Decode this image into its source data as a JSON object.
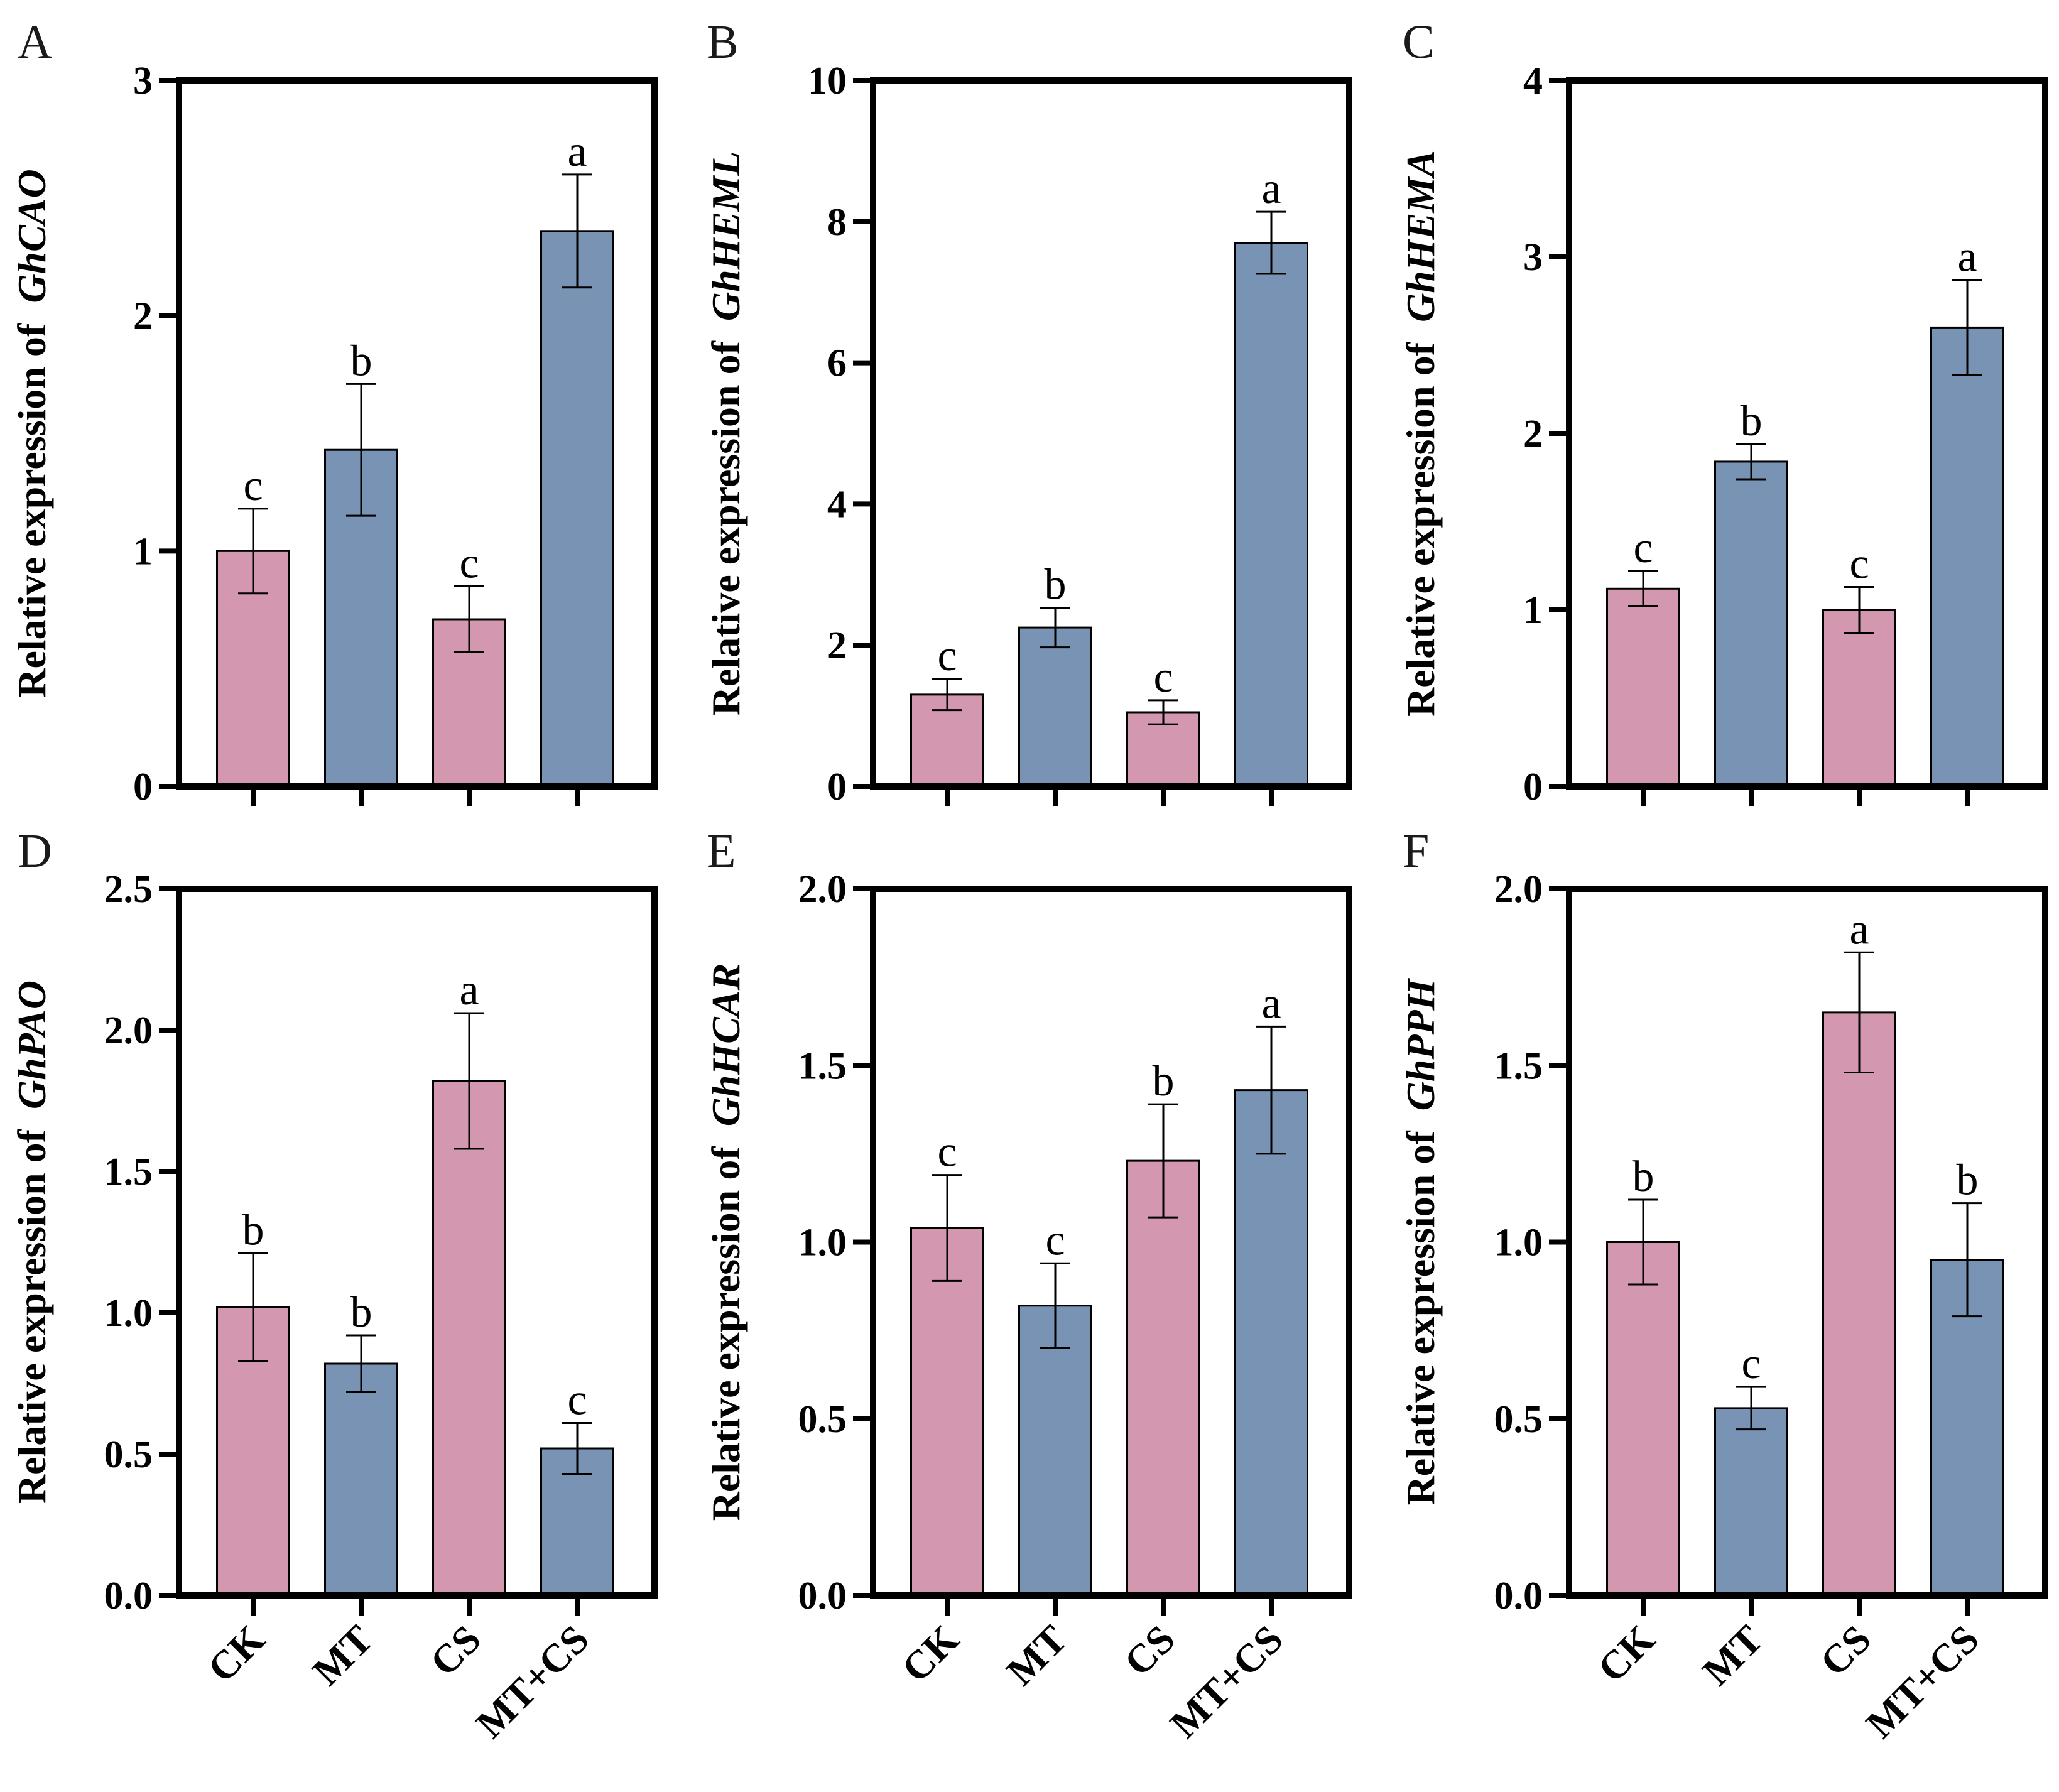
{
  "chart_data": [
    {
      "type": "bar",
      "panel": "A",
      "ylabel_prefix": "Relative expression of",
      "ylabel_gene": "GhCAO",
      "categories": [
        "CK",
        "MT",
        "CS",
        "MT+CS"
      ],
      "values": [
        1.0,
        1.43,
        0.71,
        2.36
      ],
      "errors": [
        0.18,
        0.28,
        0.14,
        0.24
      ],
      "significance": [
        "c",
        "b",
        "c",
        "a"
      ],
      "colors": [
        "#d398b0",
        "#7893b4",
        "#d398b0",
        "#7893b4"
      ],
      "ylim": [
        0,
        3
      ],
      "yticks": [
        0,
        1,
        2,
        3
      ],
      "ytick_labels": [
        "0",
        "1",
        "2",
        "3"
      ],
      "show_category_labels": false
    },
    {
      "type": "bar",
      "panel": "B",
      "ylabel_prefix": "Relative expression of",
      "ylabel_gene": "GhHEML",
      "categories": [
        "CK",
        "MT",
        "CS",
        "MT+CS"
      ],
      "values": [
        1.3,
        2.25,
        1.05,
        7.7
      ],
      "errors": [
        0.22,
        0.28,
        0.17,
        0.44
      ],
      "significance": [
        "c",
        "b",
        "c",
        "a"
      ],
      "colors": [
        "#d398b0",
        "#7893b4",
        "#d398b0",
        "#7893b4"
      ],
      "ylim": [
        0,
        10
      ],
      "yticks": [
        0,
        2,
        4,
        6,
        8,
        10
      ],
      "ytick_labels": [
        "0",
        "2",
        "4",
        "6",
        "8",
        "10"
      ],
      "show_category_labels": false
    },
    {
      "type": "bar",
      "panel": "C",
      "ylabel_prefix": "Relative expression of",
      "ylabel_gene": "GhHEMA",
      "categories": [
        "CK",
        "MT",
        "CS",
        "MT+CS"
      ],
      "values": [
        1.12,
        1.84,
        1.0,
        2.6
      ],
      "errors": [
        0.1,
        0.1,
        0.13,
        0.27
      ],
      "significance": [
        "c",
        "b",
        "c",
        "a"
      ],
      "colors": [
        "#d398b0",
        "#7893b4",
        "#d398b0",
        "#7893b4"
      ],
      "ylim": [
        0,
        4
      ],
      "yticks": [
        0,
        1,
        2,
        3,
        4
      ],
      "ytick_labels": [
        "0",
        "1",
        "2",
        "3",
        "4"
      ],
      "show_category_labels": false
    },
    {
      "type": "bar",
      "panel": "D",
      "ylabel_prefix": "Relative expression of",
      "ylabel_gene": "GhPAO",
      "categories": [
        "CK",
        "MT",
        "CS",
        "MT+CS"
      ],
      "values": [
        1.02,
        0.82,
        1.82,
        0.52
      ],
      "errors": [
        0.19,
        0.1,
        0.24,
        0.09
      ],
      "significance": [
        "b",
        "b",
        "a",
        "c"
      ],
      "colors": [
        "#d398b0",
        "#7893b4",
        "#d398b0",
        "#7893b4"
      ],
      "ylim": [
        0,
        2.5
      ],
      "yticks": [
        0,
        0.5,
        1.0,
        1.5,
        2.0,
        2.5
      ],
      "ytick_labels": [
        "0.0",
        "0.5",
        "1.0",
        "1.5",
        "2.0",
        "2.5"
      ],
      "show_category_labels": true
    },
    {
      "type": "bar",
      "panel": "E",
      "ylabel_prefix": "Relative expression of",
      "ylabel_gene": "GhHCAR",
      "categories": [
        "CK",
        "MT",
        "CS",
        "MT+CS"
      ],
      "values": [
        1.04,
        0.82,
        1.23,
        1.43
      ],
      "errors": [
        0.15,
        0.12,
        0.16,
        0.18
      ],
      "significance": [
        "c",
        "c",
        "b",
        "a"
      ],
      "colors": [
        "#d398b0",
        "#7893b4",
        "#d398b0",
        "#7893b4"
      ],
      "ylim": [
        0,
        2.0
      ],
      "yticks": [
        0,
        0.5,
        1.0,
        1.5,
        2.0
      ],
      "ytick_labels": [
        "0.0",
        "0.5",
        "1.0",
        "1.5",
        "2.0"
      ],
      "show_category_labels": true
    },
    {
      "type": "bar",
      "panel": "F",
      "ylabel_prefix": "Relative expression of",
      "ylabel_gene": "GhPPH",
      "categories": [
        "CK",
        "MT",
        "CS",
        "MT+CS"
      ],
      "values": [
        1.0,
        0.53,
        1.65,
        0.95
      ],
      "errors": [
        0.12,
        0.06,
        0.17,
        0.16
      ],
      "significance": [
        "b",
        "c",
        "a",
        "b"
      ],
      "colors": [
        "#d398b0",
        "#7893b4",
        "#d398b0",
        "#7893b4"
      ],
      "ylim": [
        0,
        2.0
      ],
      "yticks": [
        0,
        0.5,
        1.0,
        1.5,
        2.0
      ],
      "ytick_labels": [
        "0.0",
        "0.5",
        "1.0",
        "1.5",
        "2.0"
      ],
      "show_category_labels": true
    }
  ]
}
